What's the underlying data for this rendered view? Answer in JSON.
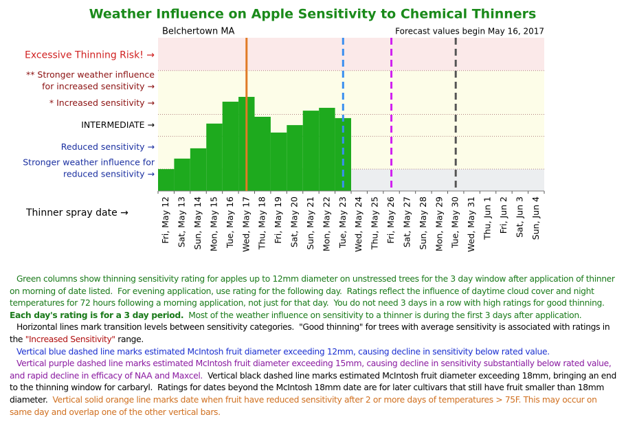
{
  "chart_data": {
    "type": "bar",
    "title": "Weather Influence on Apple Sensitivity to Chemical Thinners",
    "location": "Belchertown MA",
    "forecast_note": "Forecast values begin May 16, 2017",
    "x_label": "Thinner spray date →",
    "categories": [
      "Fri, May 12",
      "Sat, May 13",
      "Sun, May 14",
      "Mon, May 15",
      "Tue, May 16",
      "Wed, May 17",
      "Thu, May 18",
      "Fri, May 19",
      "Sat, May 20",
      "Sun, May 21",
      "Mon, May 22",
      "Tue, May 23",
      "Wed, May 24",
      "Thu, May 25",
      "Fri, May 26",
      "Sat, May 27",
      "Sun, May 28",
      "Mon, May 29",
      "Tue, May 30",
      "Wed, May 31",
      "Thu, Jun 1",
      "Fri, Jun 2",
      "Sat, Jun 3",
      "Sun, Jun 4"
    ],
    "values": [
      1.0,
      1.48,
      1.95,
      3.08,
      4.08,
      4.3,
      3.39,
      2.67,
      3.01,
      3.67,
      3.8,
      3.33,
      null,
      null,
      null,
      null,
      null,
      null,
      null,
      null,
      null,
      null,
      null,
      null
    ],
    "color": "#1eaa1e",
    "ylim": [
      0,
      7
    ],
    "yticks": [
      {
        "value": 1,
        "label": [
          "Stronger weather influence for",
          "reduced sensitivity →"
        ],
        "color": "#1a2fa0"
      },
      {
        "value": 2,
        "label": [
          "Reduced sensitivity →"
        ],
        "color": "#1a2fa0"
      },
      {
        "value": 3,
        "label": [
          "INTERMEDIATE  →"
        ],
        "color": "#000000"
      },
      {
        "value": 4,
        "label": [
          "* Increased sensitivity →"
        ],
        "color": "#8b1010"
      },
      {
        "value": 5,
        "label": [
          "** Stronger weather influence",
          "for  increased sensitivity →"
        ],
        "color": "#8b1010"
      },
      {
        "value": 6.2,
        "label": [
          "Excessive Thinning Risk! →"
        ],
        "color": "#d02020"
      }
    ],
    "grid_lines": [
      1,
      2.5,
      3.5,
      5.5
    ],
    "markers": [
      {
        "category": "Wed, May 17",
        "color": "#e07b26",
        "dashed": false
      },
      {
        "category": "Tue, May 23",
        "color": "#3a8ff0",
        "dashed": true
      },
      {
        "category": "Fri, May 26",
        "color": "#d020f0",
        "dashed": true
      },
      {
        "category": "Tue, May 30",
        "color": "#555555",
        "dashed": true
      }
    ]
  },
  "notes": [
    [
      {
        "text": "Green columns show thinning sensitivity rating for apples up to 12mm diameter on unstressed trees for the 3 day window after application of thinner on morning of date listed.  For evening application, use rating for the following day.  Ratings reflect the influence of daytime cloud cover and night temperatures for 72 hours following a morning application, not just for that day.  You do not need 3 days in a row with high ratings for good thinning.  ",
        "color": "#1a7a1a",
        "bold": false
      },
      {
        "text": "Each day's rating is for a 3 day period.",
        "color": "#1a7a1a",
        "bold": true
      },
      {
        "text": "  Most of the weather influence on sensitivity to a thinner is during the first 3 days after application.",
        "color": "#1a7a1a",
        "bold": false
      }
    ],
    [
      {
        "text": "Horizontal lines mark transition levels between sensitivity categories.  \"Good thinning\" for trees with average sensitivity is associated with ratings in the ",
        "color": "#000000",
        "bold": false
      },
      {
        "text": "\"Increased Sensitivity\"",
        "color": "#b01010",
        "bold": false
      },
      {
        "text": " range.",
        "color": "#000000",
        "bold": false
      }
    ],
    [
      {
        "text": "Vertical blue dashed line marks estimated McIntosh fruit diameter exceeding 12mm, causing decline in sensitivity below rated value.",
        "color": "#1a2fd0",
        "bold": false
      }
    ],
    [
      {
        "text": "Vertical purple dashed line marks estimated McIntosh fruit diameter exceeding 15mm, causing decline in sensitivity substantially below rated value, and rapid decline in efficacy of NAA and Maxcel.",
        "color": "#8a1aa0",
        "bold": false
      },
      {
        "text": "  Vertical black dashed line marks estimated McIntosh fruit diameter exceeding 18mm, bringing an end to the thinning window for carbaryl.  Ratings for dates beyond the McIntosh 18mm date are for later cultivars that still have fruit smaller than 18mm diameter.",
        "color": "#000000",
        "bold": false
      },
      {
        "text": "  Vertical solid orange line marks date when fruit have reduced sensitivity after 2 or more days of temperatures > 75F. This may occur on same day and overlap one of the other vertical bars.",
        "color": "#d07020",
        "bold": false
      }
    ]
  ]
}
